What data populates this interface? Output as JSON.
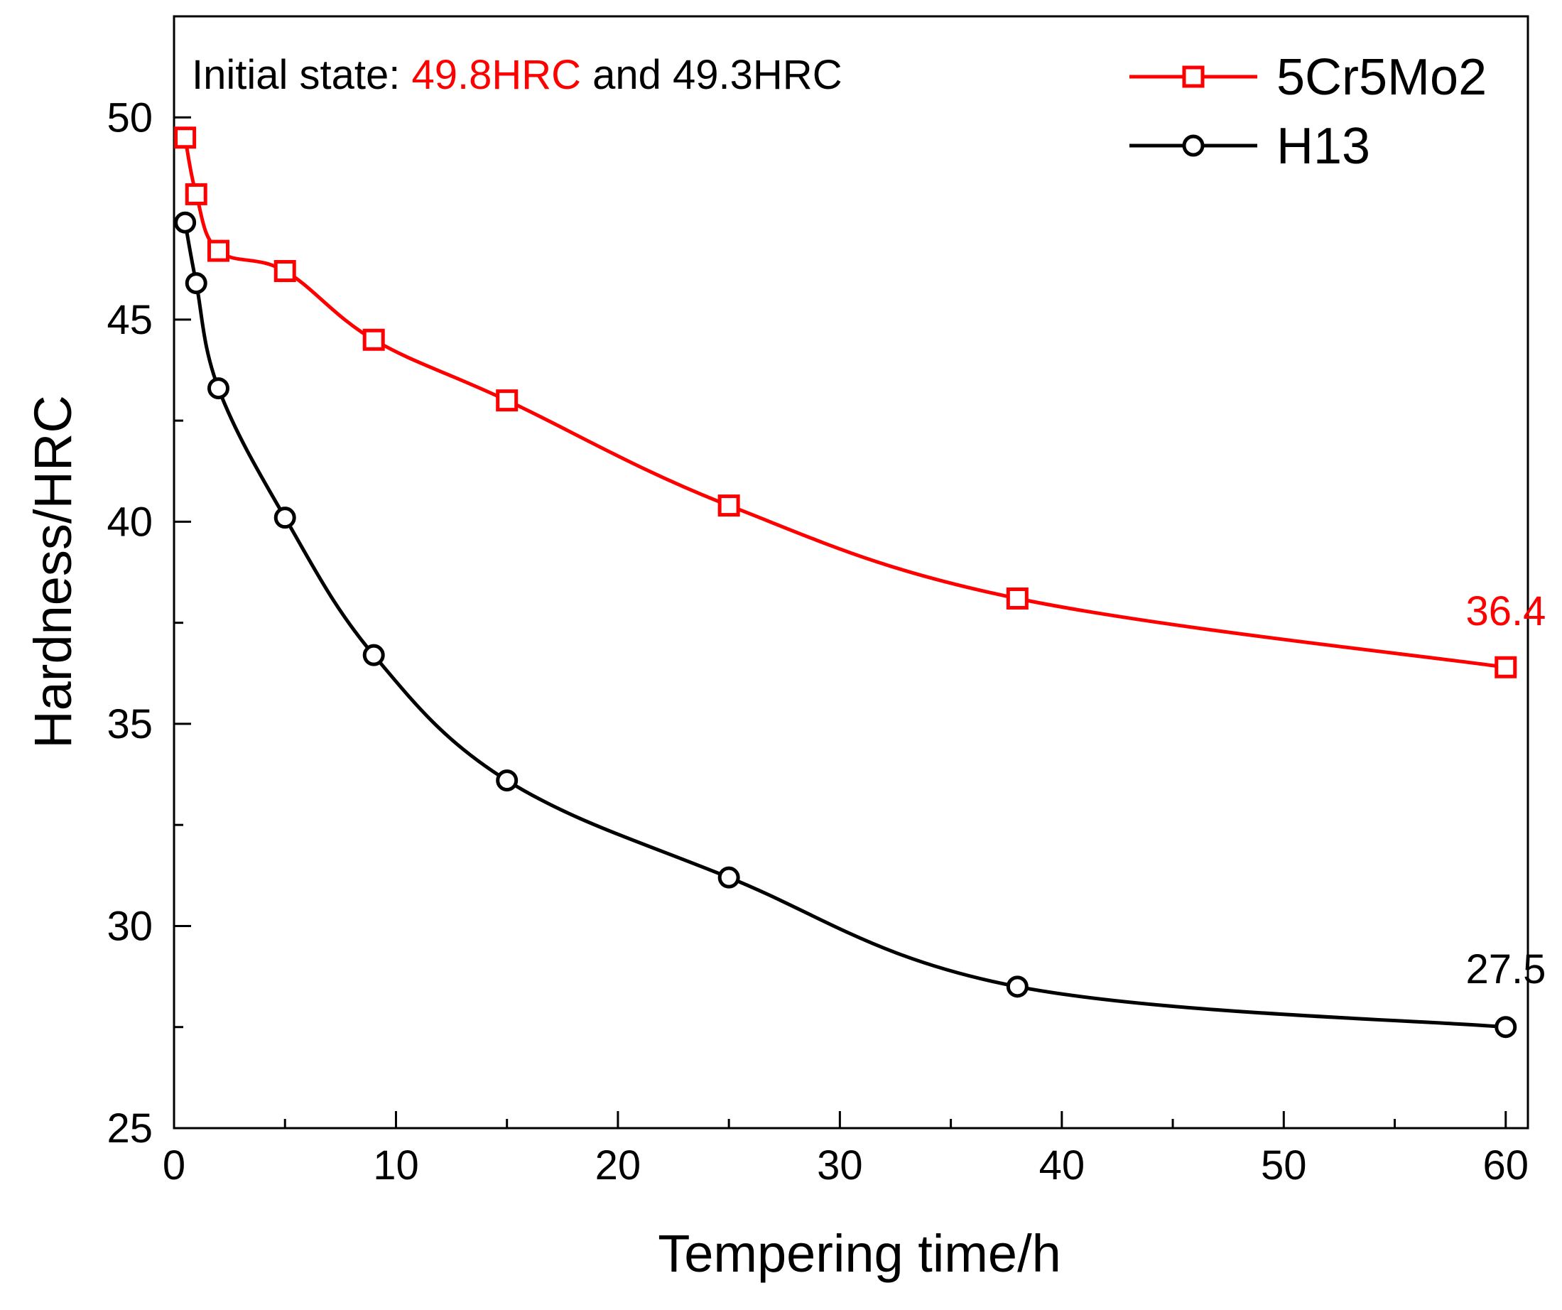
{
  "chart_data": {
    "type": "line",
    "title": "",
    "xlabel": "Tempering time/h",
    "ylabel": "Hardness/HRC",
    "xlim": [
      0,
      61
    ],
    "ylim": [
      25,
      52.5
    ],
    "x_ticks": [
      0,
      10,
      20,
      30,
      40,
      50,
      60
    ],
    "y_ticks": [
      25,
      30,
      35,
      40,
      45,
      50
    ],
    "x_tick_labels": [
      "0",
      "10",
      "20",
      "30",
      "40",
      "50",
      "60"
    ],
    "y_tick_labels": [
      "25",
      "30",
      "35",
      "40",
      "45",
      "50"
    ],
    "grid": false,
    "legend_position": "top-right",
    "series": [
      {
        "name": "5Cr5Mo2",
        "color": "#ff0000",
        "marker": "square",
        "x": [
          0.5,
          1,
          2,
          5,
          9,
          15,
          25,
          38,
          60
        ],
        "values": [
          49.5,
          48.1,
          46.7,
          46.2,
          44.5,
          43.0,
          40.4,
          38.1,
          36.4
        ]
      },
      {
        "name": "H13",
        "color": "#000000",
        "marker": "circle",
        "x": [
          0.5,
          1,
          2,
          5,
          9,
          15,
          25,
          38,
          60
        ],
        "values": [
          47.4,
          45.9,
          43.3,
          40.1,
          36.7,
          33.6,
          31.2,
          28.5,
          27.5
        ]
      }
    ],
    "annotations": {
      "initial_state": {
        "prefix": "Initial state: ",
        "value_a": "49.8HRC",
        "connector": " and ",
        "value_b": "49.3HRC"
      },
      "end_labels": [
        {
          "series": "5Cr5Mo2",
          "text": "36.4",
          "color": "#ff0000"
        },
        {
          "series": "H13",
          "text": "27.5",
          "color": "#000000"
        }
      ]
    }
  }
}
